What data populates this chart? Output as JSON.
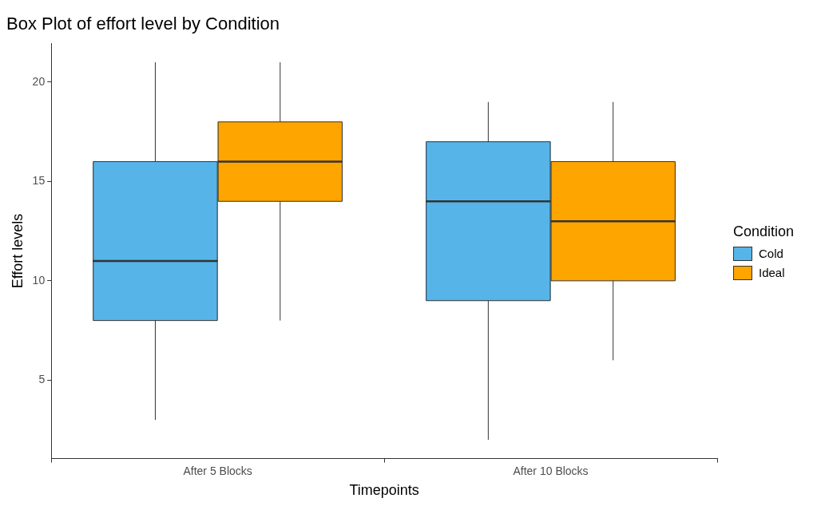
{
  "chart_data": {
    "type": "box",
    "title": "Box Plot of effort level by Condition",
    "xlabel": "Timepoints",
    "ylabel": "Effort levels",
    "legend_title": "Condition",
    "categories": [
      "After 5 Blocks",
      "After 10 Blocks"
    ],
    "series": [
      {
        "name": "Cold",
        "color": "#56b4e9",
        "boxes": [
          {
            "low": 3,
            "q1": 8,
            "median": 11,
            "q3": 16,
            "high": 21
          },
          {
            "low": 2,
            "q1": 9,
            "median": 14,
            "q3": 17,
            "high": 19
          }
        ]
      },
      {
        "name": "Ideal",
        "color": "#ffa500",
        "boxes": [
          {
            "low": 8,
            "q1": 14,
            "median": 16,
            "q3": 18,
            "high": 21
          },
          {
            "low": 6,
            "q1": 10,
            "median": 13,
            "q3": 16,
            "high": 19
          }
        ]
      }
    ],
    "ylim": [
      1.05,
      21.95
    ],
    "yticks": [
      5,
      10,
      15,
      20
    ],
    "grid": false,
    "legend": "right"
  }
}
